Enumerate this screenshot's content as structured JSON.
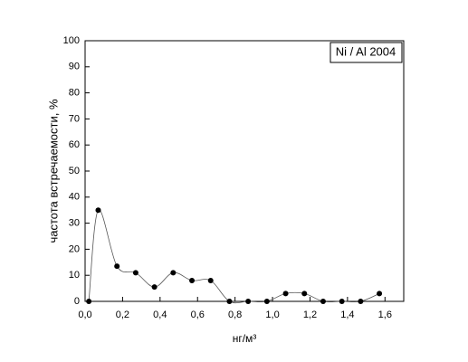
{
  "chart_data": {
    "type": "scatter",
    "annotation": "Ni / Al 2004",
    "x_label": "нг/м³",
    "y_label": "частота встречаемости, %",
    "x": [
      0.02,
      0.07,
      0.17,
      0.27,
      0.37,
      0.47,
      0.57,
      0.67,
      0.77,
      0.87,
      0.97,
      1.07,
      1.17,
      1.27,
      1.37,
      1.47,
      1.57
    ],
    "values": [
      0,
      35,
      13.5,
      11,
      5.5,
      11,
      8,
      8,
      0,
      0,
      0,
      3,
      3,
      0,
      0,
      0,
      3
    ],
    "color": "#000000",
    "line_color": "#555555",
    "xlim": [
      0,
      1.7
    ],
    "ylim": [
      0,
      100
    ],
    "xticks": [
      {
        "value": 0,
        "label": "0,0"
      },
      {
        "value": 0.2,
        "label": "0,2"
      },
      {
        "value": 0.4,
        "label": "0,4"
      },
      {
        "value": 0.6,
        "label": "0,6"
      },
      {
        "value": 0.8,
        "label": "0,8"
      },
      {
        "value": 1.0,
        "label": "1,0"
      },
      {
        "value": 1.2,
        "label": "1,2"
      },
      {
        "value": 1.4,
        "label": "1,4"
      },
      {
        "value": 1.6,
        "label": "1,6"
      }
    ],
    "yticks": [
      0,
      10,
      20,
      30,
      40,
      50,
      60,
      70,
      80,
      90,
      100
    ]
  }
}
